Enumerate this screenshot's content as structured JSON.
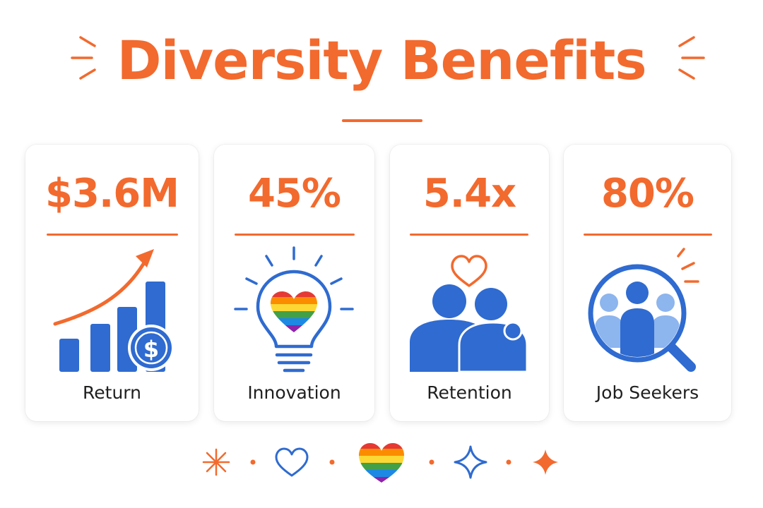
{
  "title": "Diversity Benefits",
  "colors": {
    "accent": "#F26A2E",
    "primary_blue": "#2F6BD0",
    "light_blue": "#8DB5EE",
    "card_bg": "#FFFFFF",
    "label_text": "#1F1F1F"
  },
  "cards": [
    {
      "value": "$3.6M",
      "label": "Return",
      "icon": "growth-chart-dollar-icon"
    },
    {
      "value": "45%",
      "label": "Innovation",
      "icon": "rainbow-heart-lightbulb-icon"
    },
    {
      "value": "5.4x",
      "label": "Retention",
      "icon": "two-people-heart-icon"
    },
    {
      "value": "80%",
      "label": "Job Seekers",
      "icon": "magnifier-people-icon"
    }
  ],
  "footer_icons": [
    "asterisk-icon",
    "dot-icon",
    "heart-outline-icon",
    "dot-icon",
    "rainbow-heart-icon",
    "dot-icon",
    "sparkle-outline-icon",
    "dot-icon",
    "sparkle-filled-icon"
  ]
}
